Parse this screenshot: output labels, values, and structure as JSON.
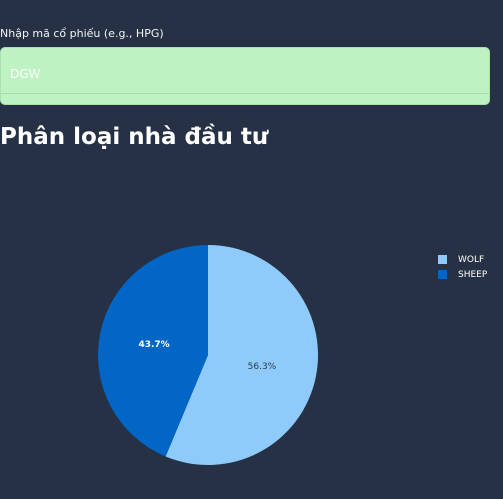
{
  "input": {
    "label": "Nhập mã cổ phiếu (e.g., HPG)",
    "value": "DGW"
  },
  "section": {
    "title": "Phân loại nhà đầu tư"
  },
  "colors": {
    "background": "#263145",
    "input_bg": "#bff2c2"
  },
  "chart_data": {
    "type": "pie",
    "categories": [
      "WOLF",
      "SHEEP"
    ],
    "values": [
      56.3,
      43.7
    ],
    "colors": [
      "#8ecbfb",
      "#0266c6"
    ],
    "data_labels": [
      "56.3%",
      "43.7%"
    ],
    "title": "",
    "legend_position": "right"
  }
}
